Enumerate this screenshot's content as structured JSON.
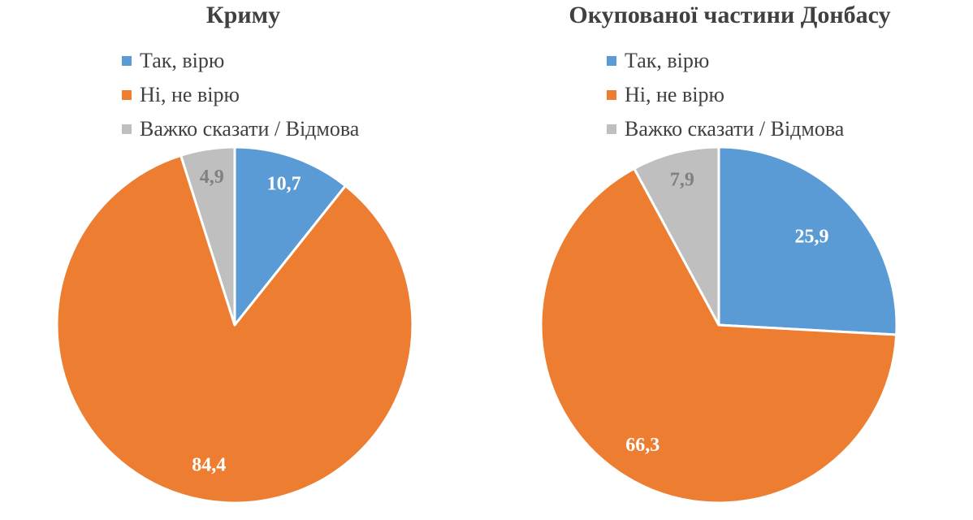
{
  "chart_data": [
    {
      "type": "pie",
      "title": "Криму",
      "categories": [
        "Так, вірю",
        "Ні, не вірю",
        "Важко сказати / Відмова"
      ],
      "values": [
        10.7,
        84.4,
        4.9
      ],
      "value_labels": [
        "10,7",
        "84,4",
        "4,9"
      ],
      "colors": [
        "#5b9bd5",
        "#ed7d31",
        "#bfbfbf"
      ],
      "legend_position": "top"
    },
    {
      "type": "pie",
      "title": "Окупованої частини Донбасу",
      "categories": [
        "Так, вірю",
        "Ні, не вірю",
        "Важко сказати / Відмова"
      ],
      "values": [
        25.9,
        66.3,
        7.9
      ],
      "value_labels": [
        "25,9",
        "66,3",
        "7,9"
      ],
      "colors": [
        "#5b9bd5",
        "#ed7d31",
        "#bfbfbf"
      ],
      "legend_position": "top"
    }
  ]
}
